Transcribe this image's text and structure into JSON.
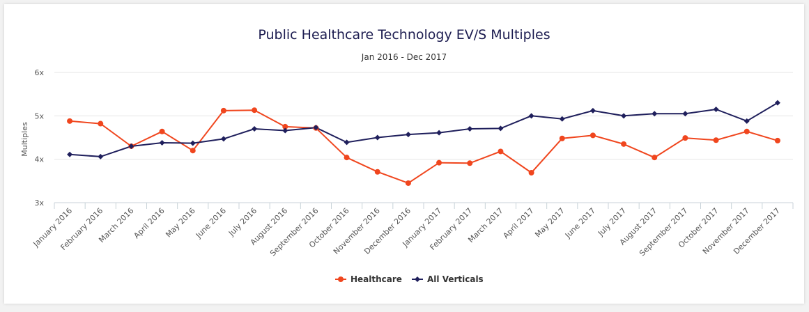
{
  "chart_data": {
    "type": "line",
    "title": "Public Healthcare Technology EV/S Multiples",
    "subtitle": "Jan 2016 - Dec 2017",
    "ylabel": "Multiples",
    "xlabel": "",
    "ylim": [
      3,
      6
    ],
    "yticks": [
      "3x",
      "4x",
      "5x",
      "6x"
    ],
    "categories": [
      "January 2016",
      "February 2016",
      "March 2016",
      "April 2016",
      "May 2016",
      "June 2016",
      "July 2016",
      "August 2016",
      "September 2016",
      "October 2016",
      "November 2016",
      "December 2016",
      "January 2017",
      "February 2017",
      "March 2017",
      "April 2017",
      "May 2017",
      "June 2017",
      "July 2017",
      "August 2017",
      "September 2017",
      "October 2017",
      "November 2017",
      "December 2017"
    ],
    "series": [
      {
        "name": "Healthcare",
        "color": "#f0461e",
        "marker": "circle",
        "values": [
          4.88,
          4.82,
          4.3,
          4.64,
          4.2,
          5.12,
          5.13,
          4.75,
          4.72,
          4.04,
          3.71,
          3.45,
          3.92,
          3.91,
          4.18,
          3.69,
          4.48,
          4.55,
          4.35,
          4.04,
          4.49,
          4.44,
          4.64,
          4.43
        ]
      },
      {
        "name": "All Verticals",
        "color": "#1f1f5c",
        "marker": "diamond",
        "values": [
          4.11,
          4.06,
          4.3,
          4.38,
          4.37,
          4.47,
          4.7,
          4.66,
          4.73,
          4.39,
          4.5,
          4.57,
          4.61,
          4.7,
          4.71,
          5.0,
          4.93,
          5.12,
          5.0,
          5.05,
          5.05,
          5.15,
          4.88,
          5.3
        ]
      }
    ],
    "grid": true,
    "legend": "bottom-center"
  }
}
